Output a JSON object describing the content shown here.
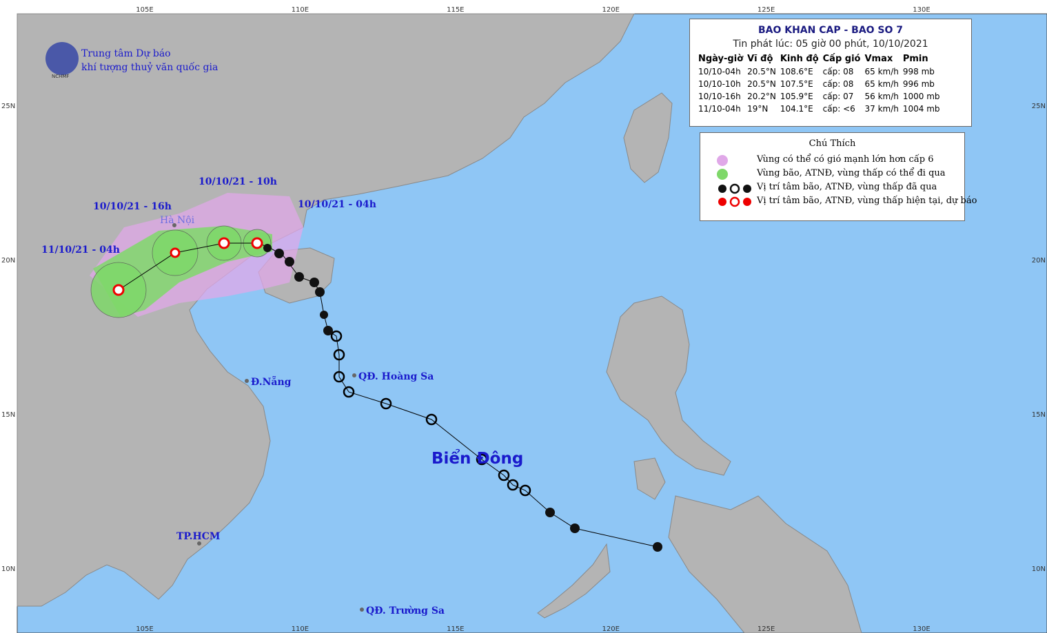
{
  "logo": {
    "line1": "Trung tâm Dự báo",
    "line2": "khí tượng thuỷ văn quốc gia",
    "badge": "NCHMF"
  },
  "bulletin": {
    "title": "BAO KHAN CAP - BAO SO 7",
    "subtitle": "Tin phát lúc: 05 giờ 00 phút, 10/10/2021",
    "columns": [
      "Ngày-giờ",
      "Vĩ độ",
      "Kinh độ",
      "Cấp gió",
      "Vmax",
      "Pmin"
    ],
    "rows": [
      [
        "10/10-04h",
        "20.5°N",
        "108.6°E",
        "cấp: 08",
        "65 km/h",
        "998 mb"
      ],
      [
        "10/10-10h",
        "20.5°N",
        "107.5°E",
        "cấp: 08",
        "65 km/h",
        "996 mb"
      ],
      [
        "10/10-16h",
        "20.2°N",
        "105.9°E",
        "cấp: 07",
        "56 km/h",
        "1000 mb"
      ],
      [
        "11/10-04h",
        "19°N",
        "104.1°E",
        "cấp: <6",
        "37 km/h",
        "1004 mb"
      ]
    ]
  },
  "legend": {
    "title": "Chú Thích",
    "items": [
      "Vùng có thể có gió mạnh lớn hơn cấp 6",
      "Vùng bão, ATNĐ, vùng thấp có thể đi qua",
      "Vị trí tâm bão, ATNĐ, vùng thấp đã qua",
      "Vị trí tâm bão, ATNĐ, vùng thấp hiện tại, dự báo"
    ]
  },
  "map_labels": {
    "t1": "10/10/21 - 10h",
    "t2": "10/10/21 - 16h",
    "t0": "10/10/21 - 04h",
    "t3": "11/10/21 - 04h",
    "hanoi": "Hà Nội",
    "danang": "Đ.Nẵng",
    "hoangsa": "QĐ. Hoàng Sa",
    "hcm": "TP.HCM",
    "sea": "Biển Đông",
    "truongsa": "QĐ. Trường Sa"
  },
  "axes": {
    "longitudes": [
      "105E",
      "110E",
      "115E",
      "120E",
      "125E",
      "130E"
    ],
    "latitudes": [
      "25N",
      "20N",
      "15N",
      "10N"
    ]
  }
}
